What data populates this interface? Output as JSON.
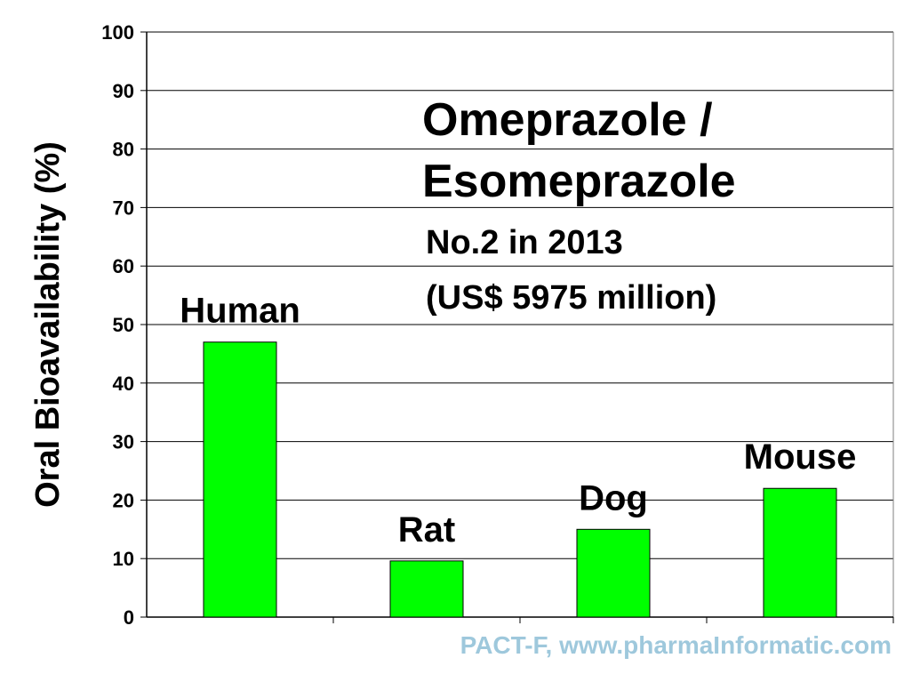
{
  "chart_data": {
    "type": "bar",
    "title_lines": [
      "Omeprazole /",
      "Esomeprazole"
    ],
    "notes": [
      "No.2 in 2013",
      "(US$ 5975 million)"
    ],
    "ylabel": "Oral Bioavailability (%)",
    "xlabel": "",
    "ylim": [
      0,
      100
    ],
    "yticks": [
      0,
      10,
      20,
      30,
      40,
      50,
      60,
      70,
      80,
      90,
      100
    ],
    "categories": [
      "Human",
      "Rat",
      "Dog",
      "Mouse"
    ],
    "values": [
      47,
      9.6,
      15,
      22
    ],
    "grid": true,
    "bar_color": "#00ff00",
    "bar_edge_color": "#000000",
    "watermark": "PACT-F, www.pharmaInformatic.com",
    "watermark_color": "#9ec8dc"
  }
}
